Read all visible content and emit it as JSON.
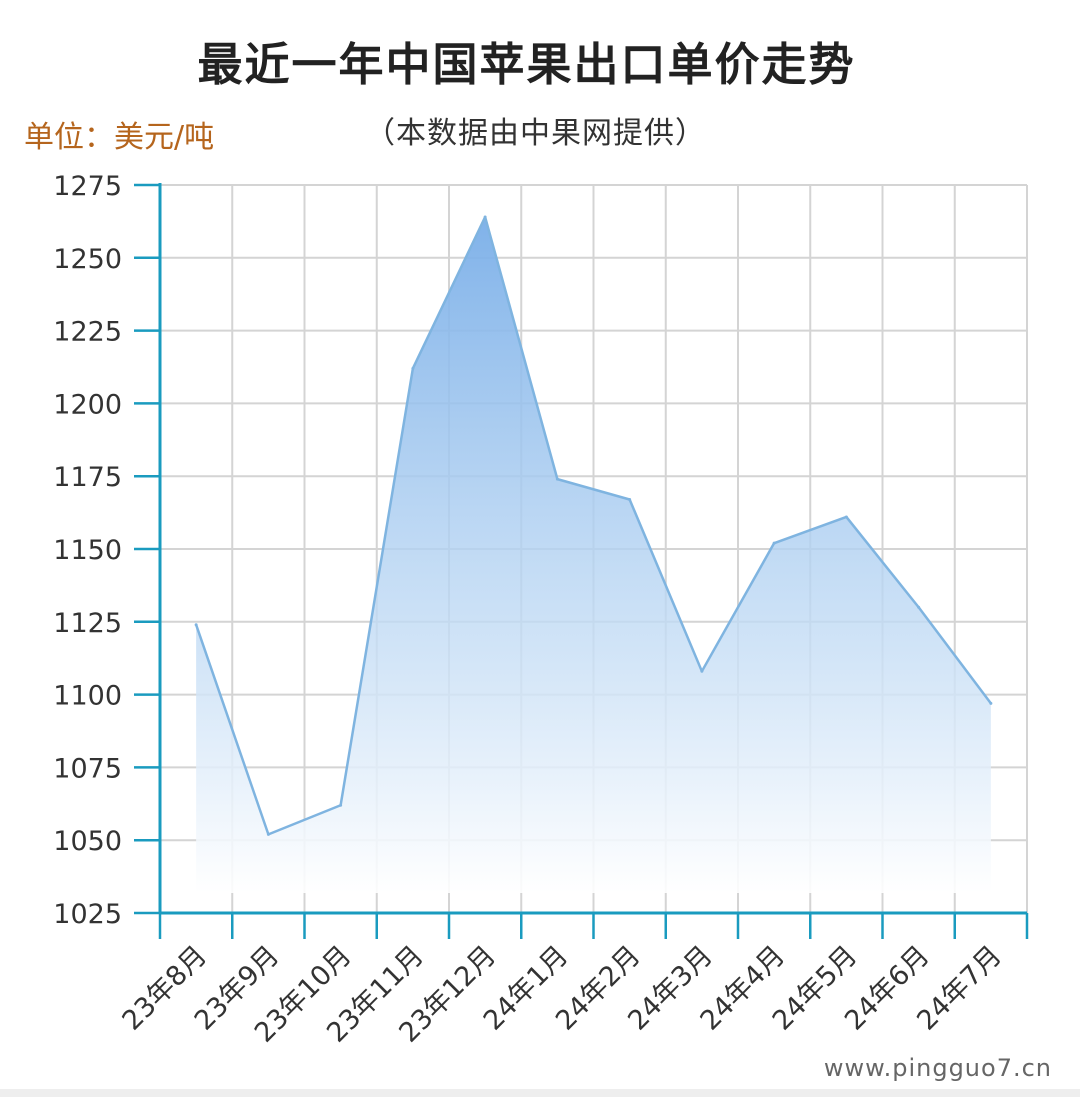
{
  "header": {
    "title": "最近一年中国苹果出口单价走势",
    "unit_label": "单位：美元/吨",
    "subtitle": "（本数据由中果网提供）"
  },
  "footer": {
    "watermark": "www.pingguo7.cn"
  },
  "colors": {
    "axis": "#1a9bbf",
    "grid": "#d4d4d4",
    "line": "#7fb4e0",
    "area_top": "#79aee8",
    "area_bottom": "#ffffff",
    "unit_text": "#b5651d"
  },
  "chart_data": {
    "type": "area",
    "title": "最近一年中国苹果出口单价走势",
    "subtitle": "（本数据由中果网提供）",
    "ylabel": "单位：美元/吨",
    "xlabel": "",
    "categories": [
      "23年8月",
      "23年9月",
      "23年10月",
      "23年11月",
      "23年12月",
      "24年1月",
      "24年2月",
      "24年3月",
      "24年4月",
      "24年5月",
      "24年6月",
      "24年7月"
    ],
    "yticks": [
      1025,
      1050,
      1075,
      1100,
      1125,
      1150,
      1175,
      1200,
      1225,
      1250,
      1275
    ],
    "ylim": [
      1025,
      1275
    ],
    "points": [
      {
        "x": "23年8月",
        "y": 1124
      },
      {
        "x": "23年9月",
        "y": 1052
      },
      {
        "x": "23年10月",
        "y": 1062
      },
      {
        "x": "23年11月",
        "y": 1212
      },
      {
        "x": "23年12月",
        "y": 1264
      },
      {
        "x": "24年1月",
        "y": 1174
      },
      {
        "x": "24年2月",
        "y": 1167
      },
      {
        "x": "24年3月",
        "y": 1108
      },
      {
        "x": "24年4月",
        "y": 1152
      },
      {
        "x": "24年5月",
        "y": 1161
      },
      {
        "x": "24年6月",
        "y": 1130
      },
      {
        "x": "24年7月",
        "y": 1097
      }
    ],
    "grid": true,
    "legend": "none"
  }
}
